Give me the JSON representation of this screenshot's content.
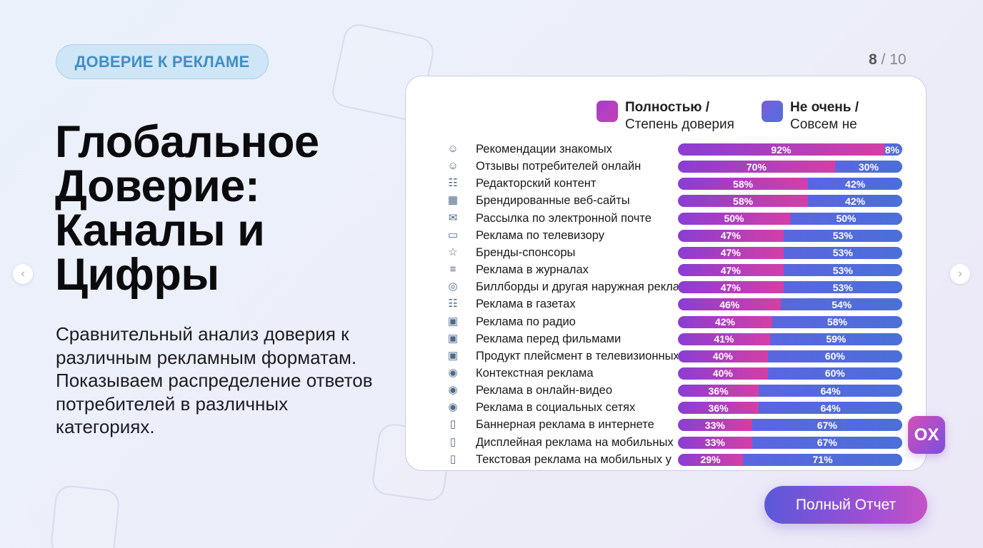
{
  "tag": "ДОВЕРИЕ К РЕКЛАМЕ",
  "headline": "Глобальное Доверие: Каналы и Цифры",
  "description": "Сравнительный анализ доверия к различным рекламным форматам. Показываем распределение ответов потребителей в различных категориях.",
  "pager": {
    "current": "8",
    "separator": " / ",
    "total": "10"
  },
  "nav": {
    "prev_icon": "chevron-left-icon",
    "next_icon": "chevron-right-icon"
  },
  "badge": "OX",
  "report_button": "Полный Отчет",
  "colors": {
    "trust": "#b83fc0",
    "distrust": "#5a6ade",
    "tag_bg": "#cfe6f7",
    "tag_text": "#3f8fc6"
  },
  "chart_data": {
    "type": "bar",
    "orientation": "horizontal",
    "stacked": true,
    "legend": "top-right",
    "series": [
      {
        "name": "Полностью / Степень доверия",
        "name_line1": "Полностью /",
        "name_line2": "Степень доверия",
        "values": [
          92,
          70,
          58,
          58,
          50,
          47,
          47,
          47,
          47,
          46,
          42,
          41,
          40,
          40,
          36,
          36,
          33,
          33,
          29
        ]
      },
      {
        "name": "Не очень / Совсем не",
        "name_line1": "Не очень /",
        "name_line2": "Совсем не",
        "values": [
          8,
          30,
          42,
          42,
          50,
          53,
          53,
          53,
          53,
          54,
          58,
          59,
          60,
          60,
          64,
          64,
          67,
          67,
          71
        ]
      }
    ],
    "categories": [
      "Рекомендации знакомых",
      "Отзывы потребителей онлайн",
      "Редакторский контент",
      "Брендированные веб-сайты",
      "Рассылка по электронной почте",
      "Реклама по телевизору",
      "Бренды-спонсоры",
      "Реклама в журналах",
      "Биллборды и другая наружная реклама",
      "Реклама в газетах",
      "Реклама по радио",
      "Реклама перед фильмами",
      "Продукт плейсмент в телевизионных",
      "Контекстная реклама",
      "Реклама в онлайн-видео",
      "Реклама в социальных сетях",
      "Баннерная реклама в интернете",
      "Дисплейная реклама на мобильных",
      "Текстовая реклама на мобильных у"
    ],
    "icons": [
      "people-icon",
      "people-icon",
      "newspaper-icon",
      "website-icon",
      "envelope-icon",
      "monitor-icon",
      "sponsor-icon",
      "magazine-icon",
      "globe-icon",
      "newspaper-icon",
      "tv-icon",
      "tv-icon",
      "tv-icon",
      "target-icon",
      "target-icon",
      "target-icon",
      "mobile-icon",
      "mobile-icon",
      "mobile-icon"
    ],
    "xlim": [
      0,
      100
    ],
    "unit": "%"
  }
}
